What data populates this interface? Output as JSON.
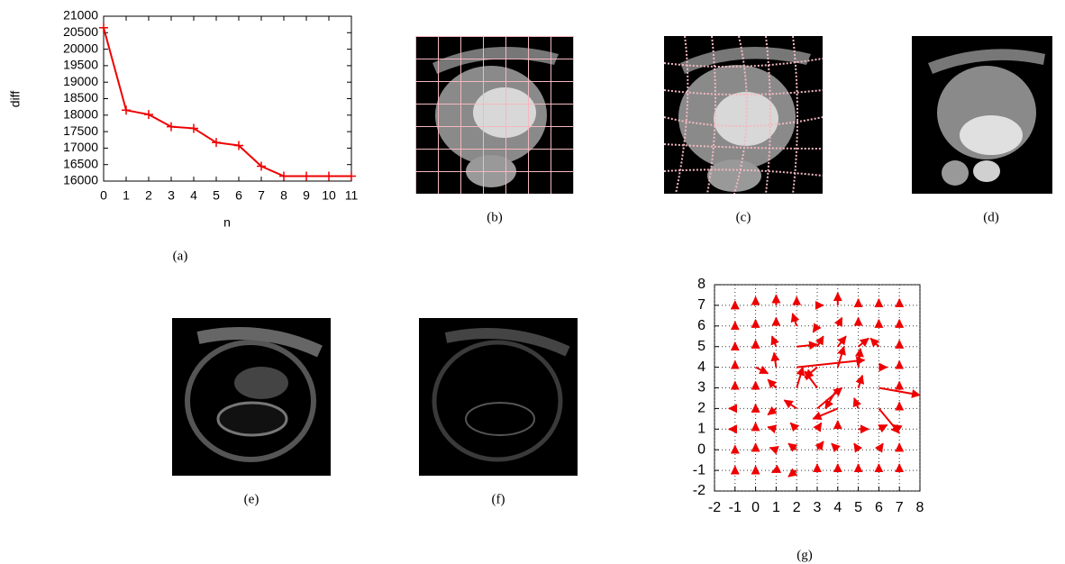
{
  "chart_data": [
    {
      "type": "line",
      "caption": "(a)",
      "xlabel": "n",
      "ylabel": "diff",
      "x": [
        0,
        1,
        2,
        3,
        4,
        5,
        6,
        7,
        8,
        9,
        10,
        11
      ],
      "values": [
        20650,
        18150,
        18020,
        17650,
        17600,
        17170,
        17080,
        16450,
        16150,
        16150,
        16150,
        16150
      ],
      "color": "#ee0000",
      "xlim": [
        0,
        11
      ],
      "xticks": [
        0,
        1,
        2,
        3,
        4,
        5,
        6,
        7,
        8,
        9,
        10,
        11
      ],
      "ylim": [
        16000,
        21000
      ],
      "yticks": [
        16000,
        16500,
        17000,
        17500,
        18000,
        18500,
        19000,
        19500,
        20000,
        20500,
        21000
      ]
    },
    {
      "type": "quiver",
      "caption": "(g)",
      "color": "#ee0000",
      "grid": true,
      "x": [
        -1,
        -1,
        -1,
        -1,
        -1,
        -1,
        -1,
        -1,
        -1,
        0,
        0,
        0,
        0,
        0,
        0,
        0,
        0,
        0,
        1,
        1,
        1,
        1,
        1,
        1,
        1,
        1,
        1,
        2,
        2,
        2,
        2,
        2,
        2,
        2,
        2,
        2,
        3,
        3,
        3,
        3,
        3,
        3,
        3,
        3,
        3,
        4,
        4,
        4,
        4,
        4,
        4,
        4,
        4,
        4,
        5,
        5,
        5,
        5,
        5,
        5,
        5,
        5,
        5,
        6,
        6,
        6,
        6,
        6,
        6,
        6,
        6,
        6,
        7,
        7,
        7,
        7,
        7,
        7,
        7,
        7,
        7
      ],
      "y": [
        -1,
        0,
        1,
        2,
        3,
        4,
        5,
        6,
        7,
        -1,
        0,
        1,
        2,
        3,
        4,
        5,
        6,
        7,
        -1,
        0,
        1,
        2,
        3,
        4,
        5,
        6,
        7,
        -1,
        0,
        1,
        2,
        3,
        4,
        5,
        6,
        7,
        -1,
        0,
        1,
        2,
        3,
        4,
        5,
        6,
        7,
        -1,
        0,
        1,
        2,
        3,
        4,
        5,
        6,
        7,
        -1,
        0,
        1,
        2,
        3,
        4,
        5,
        6,
        7,
        -1,
        0,
        1,
        2,
        3,
        4,
        5,
        6,
        7,
        -1,
        0,
        1,
        2,
        3,
        4,
        5,
        6,
        7
      ],
      "u": [
        0,
        0,
        -0.3,
        -0.3,
        0,
        0,
        0,
        0,
        0,
        0,
        0,
        0,
        0,
        0,
        0.6,
        0,
        0,
        0,
        -0.2,
        -0.3,
        -0.4,
        -0.4,
        -0.4,
        -0.1,
        -0.2,
        0,
        0,
        -0.4,
        -0.4,
        -0.3,
        -0.6,
        0.3,
        3.3,
        1.0,
        -0.2,
        0,
        0,
        0.3,
        0.2,
        1.2,
        -0.6,
        -0.6,
        0.3,
        -0.2,
        0.3,
        0,
        -0.3,
        0,
        -1.2,
        -0.6,
        0.3,
        0.4,
        0.2,
        0,
        0,
        -0.2,
        0.5,
        -0.2,
        0.2,
        0.1,
        0.5,
        0,
        0,
        0,
        0.2,
        0.4,
        1.0,
        2.0,
        0.4,
        -0.4,
        0,
        0,
        0,
        0,
        -0.3,
        0,
        0,
        0,
        0,
        0,
        0
      ],
      "v": [
        0.2,
        0.2,
        0,
        0,
        0.3,
        0.3,
        0.2,
        0.2,
        0.2,
        0.2,
        0.3,
        0.3,
        0.2,
        0.3,
        -0.3,
        0.3,
        0.3,
        0.4,
        -0.1,
        0.1,
        0.1,
        -0.3,
        0.4,
        0.7,
        0.5,
        0.4,
        0.5,
        -0.3,
        0.3,
        0.3,
        0.4,
        1.0,
        0.35,
        0.1,
        0.6,
        0.4,
        0.3,
        0.4,
        0.3,
        1.0,
        0.8,
        -0.5,
        0.5,
        -0.3,
        0,
        0.3,
        0.3,
        0.4,
        -0.5,
        -1.0,
        1.0,
        0.5,
        0.4,
        0.6,
        0.3,
        0.3,
        0,
        0.5,
        0.6,
        0.9,
        0.4,
        0.4,
        0.3,
        0.3,
        0.3,
        0.2,
        -1.2,
        -0.35,
        0,
        0.4,
        0.3,
        0.3,
        0.3,
        0.3,
        0.2,
        0.3,
        0.3,
        0.3,
        0.3,
        0.3,
        0.3
      ],
      "xlim": [
        -2,
        8
      ],
      "xticks": [
        -2,
        -1,
        0,
        1,
        2,
        3,
        4,
        5,
        6,
        7,
        8
      ],
      "ylim": [
        -2,
        8
      ],
      "yticks": [
        -2,
        -1,
        0,
        1,
        2,
        3,
        4,
        5,
        6,
        7,
        8
      ]
    }
  ],
  "images": [
    {
      "caption": "(b)"
    },
    {
      "caption": "(c)"
    },
    {
      "caption": "(d)"
    },
    {
      "caption": "(e)"
    },
    {
      "caption": "(f)"
    }
  ]
}
